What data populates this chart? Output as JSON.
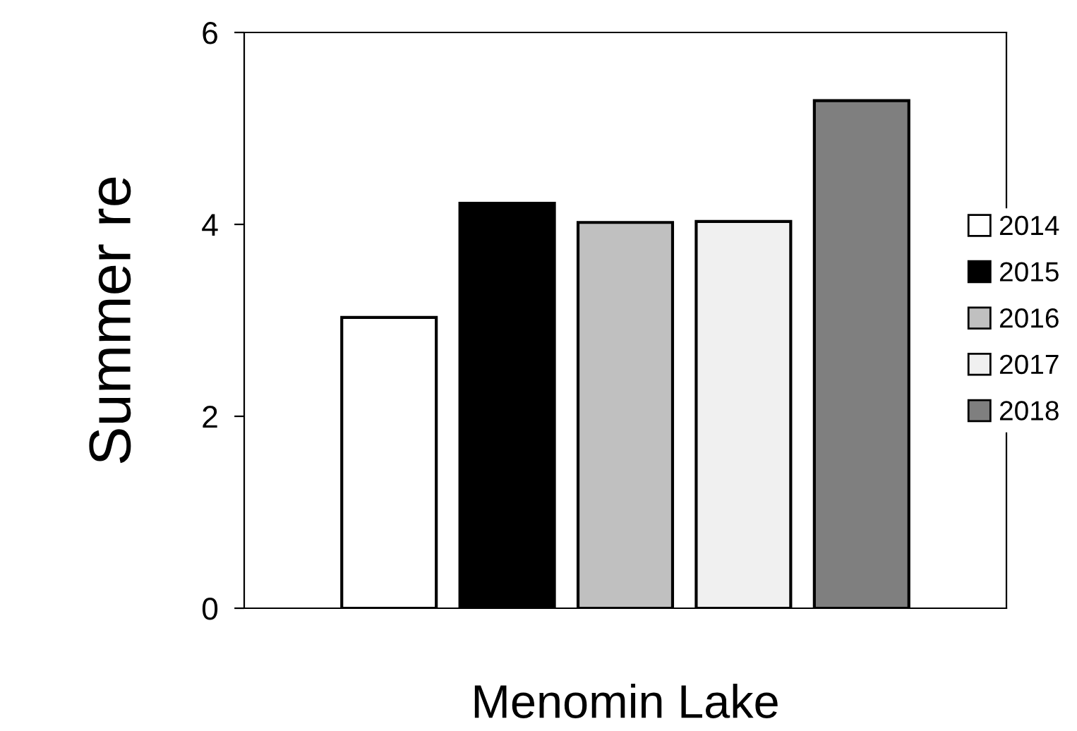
{
  "chart_data": {
    "type": "bar",
    "ylabel": "Summer re",
    "xlabel": "Menomin Lake",
    "categories": [
      null
    ],
    "series": [
      {
        "name": "2014",
        "color": "#ffffff",
        "values": [
          3.03
        ]
      },
      {
        "name": "2015",
        "color": "#000000",
        "values": [
          4.22
        ]
      },
      {
        "name": "2016",
        "color": "#c0c0c0",
        "values": [
          4.02
        ]
      },
      {
        "name": "2017",
        "color": "#f0f0f0",
        "values": [
          4.03
        ]
      },
      {
        "name": "2018",
        "color": "#7f7f7f",
        "values": [
          5.29
        ]
      }
    ],
    "ylim": [
      0,
      6
    ],
    "yticks": [
      0,
      2,
      4,
      6
    ],
    "grid": false,
    "legend": "right"
  }
}
